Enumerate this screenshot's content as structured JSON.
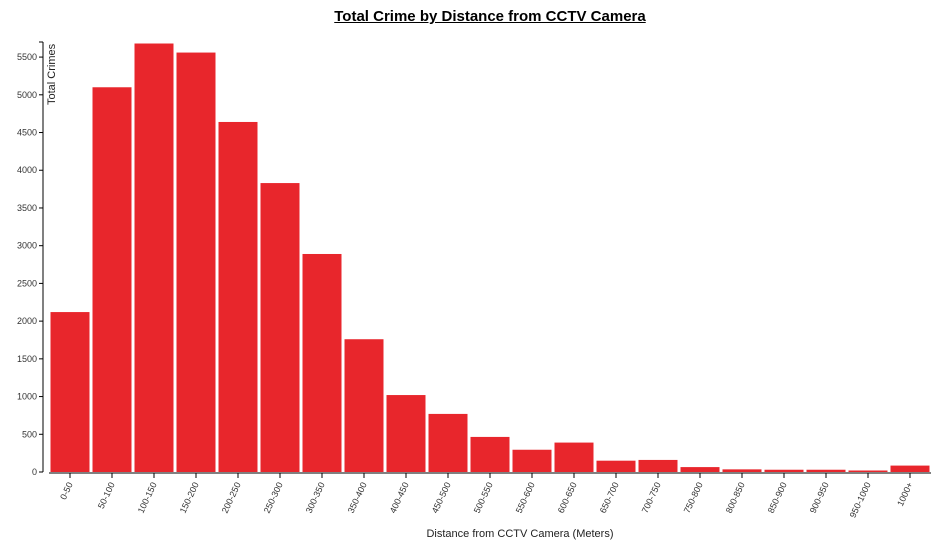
{
  "chart_data": {
    "type": "bar",
    "title": "Total Crime by Distance from CCTV Camera",
    "xlabel": "Distance from CCTV Camera (Meters)",
    "ylabel": "Total Crimes",
    "ylim": [
      0,
      5700
    ],
    "yticks": [
      0,
      500,
      1000,
      1500,
      2000,
      2500,
      3000,
      3500,
      4000,
      4500,
      5000,
      5500
    ],
    "categories": [
      "0-50",
      "50-100",
      "100-150",
      "150-200",
      "200-250",
      "250-300",
      "300-350",
      "350-400",
      "400-450",
      "450-500",
      "500-550",
      "550-600",
      "600-650",
      "650-700",
      "700-750",
      "750-800",
      "800-850",
      "850-900",
      "900-950",
      "950-1000",
      "1000+"
    ],
    "values": [
      2120,
      5100,
      5680,
      5560,
      4640,
      3830,
      2890,
      1760,
      1020,
      770,
      465,
      295,
      390,
      150,
      160,
      65,
      35,
      30,
      30,
      20,
      85
    ],
    "bar_color": "#e8262c",
    "grid": false
  }
}
